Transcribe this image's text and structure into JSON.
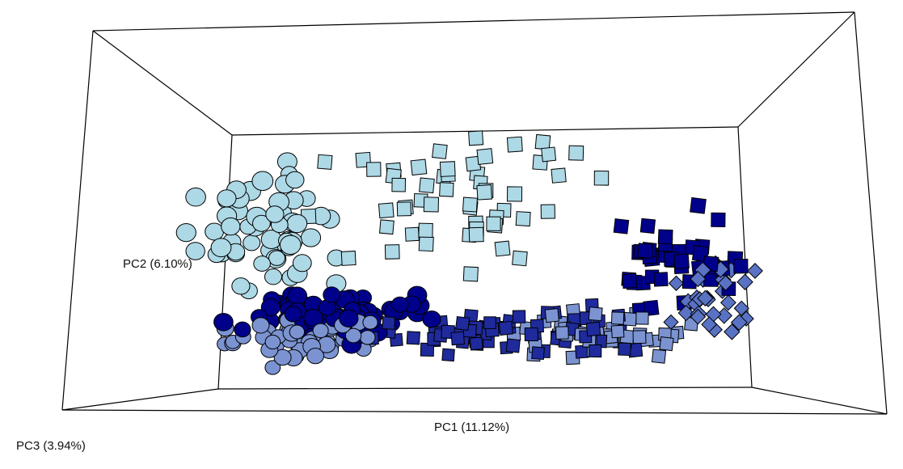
{
  "chart_data": {
    "type": "scatter",
    "projection": "3d-perspective",
    "title": "",
    "axes": {
      "x": {
        "label": "PC1 (11.12%)",
        "range": [
          -1,
          1
        ]
      },
      "y": {
        "label": "PC2 (6.10%)",
        "range": [
          -1,
          1
        ]
      },
      "z": {
        "label": "PC3 (3.94%)",
        "range": [
          -1,
          1
        ]
      }
    },
    "grid": false,
    "legend": "none",
    "box": {
      "edge_color": "#000000"
    },
    "groups": [
      {
        "shape": "circle",
        "fill": "#add8e6",
        "count": 60
      },
      {
        "shape": "square",
        "fill": "#add8e6",
        "count": 55
      },
      {
        "shape": "circle",
        "fill": "#00008b",
        "count": 70
      },
      {
        "shape": "circle",
        "fill": "#7b93d1",
        "count": 55
      },
      {
        "shape": "square",
        "fill": "#1f2a9c",
        "count": 70
      },
      {
        "shape": "square",
        "fill": "#7b93d1",
        "count": 45
      },
      {
        "shape": "square",
        "fill": "#00008b",
        "count": 40
      },
      {
        "shape": "diamond",
        "fill": "#5a72c4",
        "count": 35
      }
    ]
  }
}
